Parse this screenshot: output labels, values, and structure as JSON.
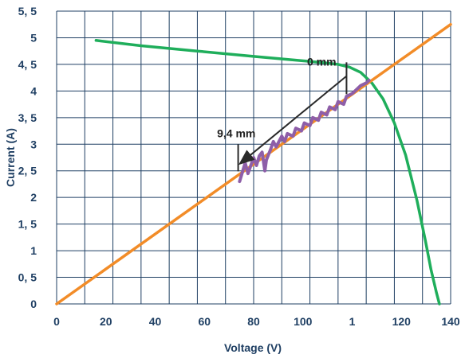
{
  "chart_data": {
    "type": "line",
    "title": "",
    "xlabel": "Voltage (V)",
    "ylabel": "Current (A)",
    "xlim": [
      0,
      140
    ],
    "ylim": [
      0,
      5.5
    ],
    "x_ticks": [
      "0",
      "20",
      "40",
      "60",
      "80",
      "100",
      "1",
      "120",
      "140"
    ],
    "y_ticks": [
      "0",
      "0, 5",
      "1",
      "1, 5",
      "2",
      "2, 5",
      "3",
      "3, 5",
      "4",
      "4, 5",
      "5",
      "5, 5"
    ],
    "grid": true,
    "legend": "none",
    "series": [
      {
        "color": "#1fae5b",
        "x": [
          14,
          30,
          50,
          70,
          85,
          95,
          100,
          104,
          108,
          112,
          116,
          120,
          124,
          128,
          131,
          133,
          135,
          136
        ],
        "y": [
          4.95,
          4.85,
          4.75,
          4.65,
          4.58,
          4.53,
          4.5,
          4.45,
          4.35,
          4.15,
          3.85,
          3.4,
          2.8,
          1.95,
          1.2,
          0.65,
          0.2,
          0
        ]
      },
      {
        "color": "#f28c28",
        "x": [
          0,
          140
        ],
        "y": [
          0,
          5.25
        ]
      },
      {
        "color": "#8e5ea8",
        "x": [
          65,
          67,
          68,
          70,
          71,
          72,
          73,
          74,
          74.5,
          76,
          77,
          78,
          80,
          81,
          82,
          84,
          85,
          87,
          88,
          90,
          91,
          93,
          94,
          96,
          97,
          99,
          100,
          102,
          103,
          105,
          106,
          108,
          110,
          111
        ],
        "y": [
          2.3,
          2.65,
          2.45,
          2.75,
          2.6,
          2.78,
          2.85,
          2.5,
          2.7,
          2.9,
          3.05,
          2.95,
          3.15,
          3.05,
          3.2,
          3.15,
          3.3,
          3.25,
          3.4,
          3.35,
          3.5,
          3.45,
          3.6,
          3.55,
          3.7,
          3.65,
          3.8,
          3.75,
          3.9,
          3.95,
          4.0,
          4.1,
          4.15,
          4.2
        ]
      }
    ],
    "annotations": [
      {
        "text": "0 mm",
        "x": 94,
        "y": 4.25
      },
      {
        "text": "9,4 mm",
        "x": 65,
        "y": 2.85
      }
    ],
    "colors": {
      "grid": "#1f3f63",
      "axis_text": "#1f3f63"
    }
  }
}
